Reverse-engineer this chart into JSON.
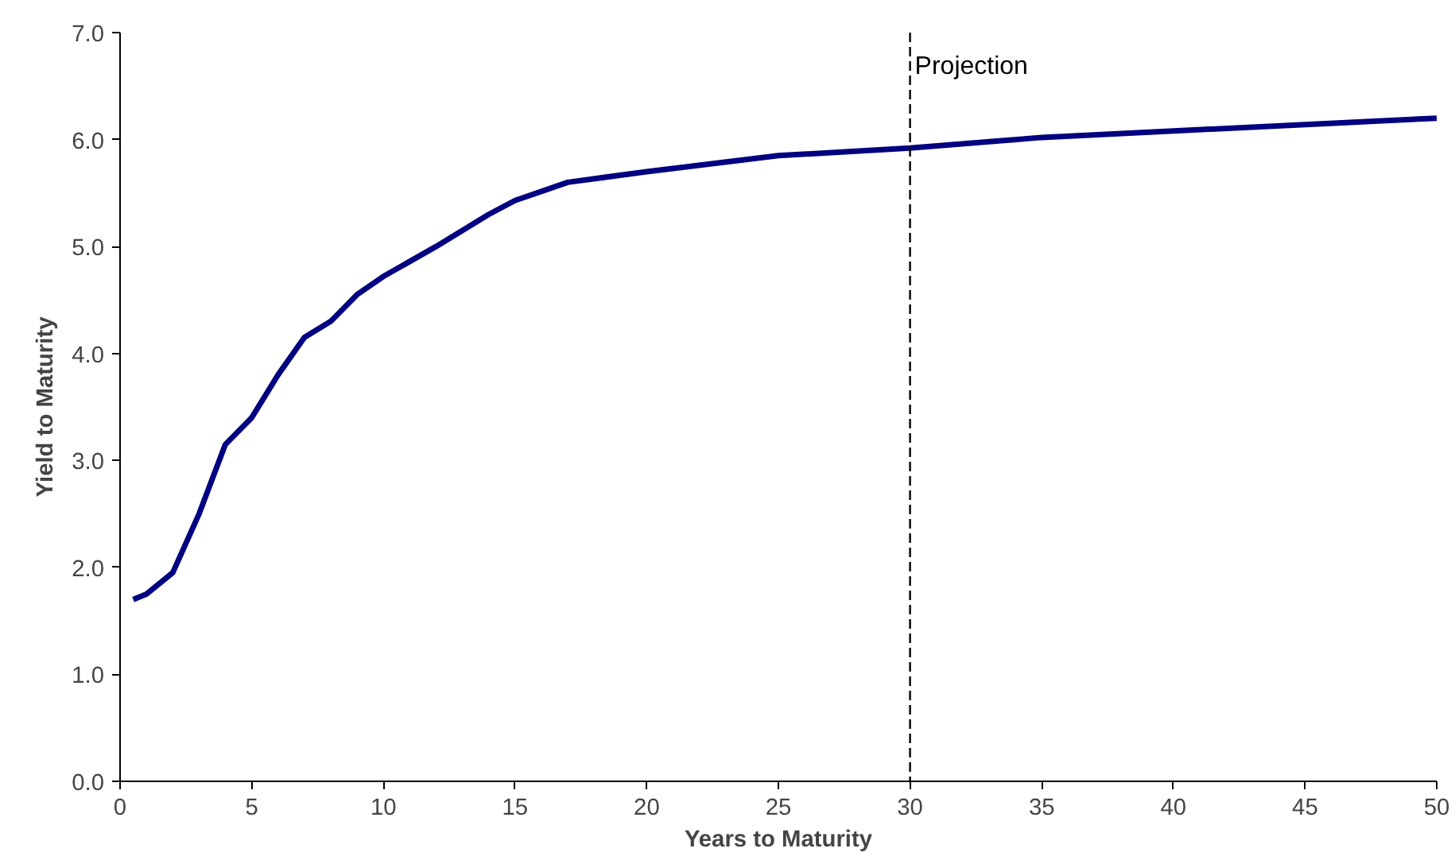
{
  "chart_data": {
    "type": "line",
    "xlabel": "Years to Maturity",
    "ylabel": "Yield to Maturity",
    "x": [
      0.5,
      1,
      2,
      3,
      4,
      5,
      6,
      7,
      8,
      9,
      10,
      12,
      14,
      15,
      17,
      20,
      25,
      30,
      35,
      40,
      45,
      50
    ],
    "series": [
      {
        "color": "#000080",
        "values": [
          1.7,
          1.75,
          1.95,
          2.5,
          3.15,
          3.4,
          3.8,
          4.15,
          4.3,
          4.55,
          4.72,
          5.0,
          5.3,
          5.43,
          5.6,
          5.7,
          5.85,
          5.92,
          6.02,
          6.08,
          6.14,
          6.2
        ]
      }
    ],
    "xlim": [
      0,
      50
    ],
    "xticks": [
      0,
      5,
      10,
      15,
      20,
      25,
      30,
      35,
      40,
      45,
      50
    ],
    "ylim": [
      0,
      7
    ],
    "yticks": [
      {
        "value": 0,
        "label": "0.0"
      },
      {
        "value": 1,
        "label": "1.0"
      },
      {
        "value": 2,
        "label": "2.0"
      },
      {
        "value": 3,
        "label": "3.0"
      },
      {
        "value": 4,
        "label": "4.0"
      },
      {
        "value": 5,
        "label": "5.0"
      },
      {
        "value": 6,
        "label": "6.0"
      },
      {
        "value": 7,
        "label": "7.0"
      }
    ],
    "ref_lines": [
      {
        "axis": "x",
        "value": 30,
        "label": "Projection",
        "color": "#000000",
        "line_style": "dashed"
      }
    ],
    "marker": "none",
    "line_style": "solid"
  }
}
